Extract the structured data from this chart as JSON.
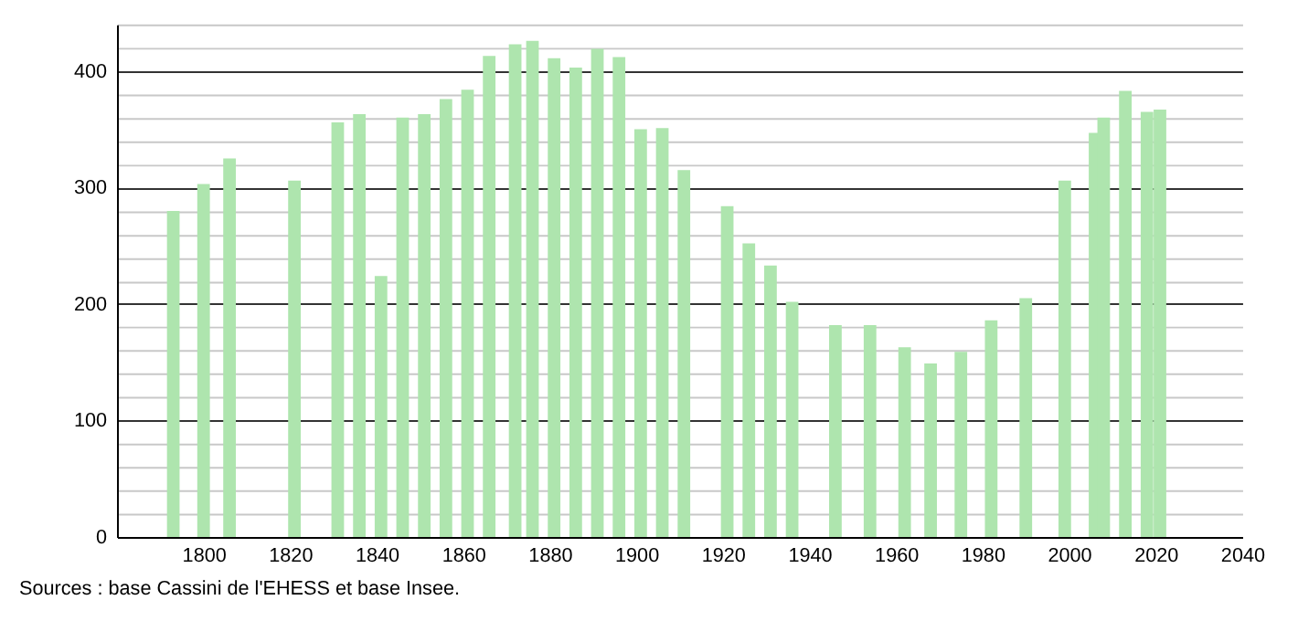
{
  "chart_data": {
    "type": "bar",
    "x": [
      1793,
      1800,
      1806,
      1821,
      1831,
      1836,
      1841,
      1846,
      1851,
      1856,
      1861,
      1866,
      1872,
      1876,
      1881,
      1886,
      1891,
      1896,
      1901,
      1906,
      1911,
      1921,
      1926,
      1931,
      1936,
      1946,
      1954,
      1962,
      1968,
      1975,
      1982,
      1990,
      1999,
      2006,
      2008,
      2013,
      2018,
      2021
    ],
    "values": [
      280,
      303,
      325,
      306,
      356,
      363,
      224,
      360,
      363,
      376,
      384,
      413,
      423,
      426,
      411,
      403,
      419,
      412,
      350,
      351,
      315,
      284,
      252,
      233,
      202,
      182,
      182,
      163,
      149,
      159,
      186,
      205,
      306,
      347,
      360,
      383,
      365,
      367
    ],
    "color": "#aee5ae",
    "xlim": [
      1780,
      2040
    ],
    "xticks": [
      1800,
      1820,
      1840,
      1860,
      1880,
      1900,
      1920,
      1940,
      1960,
      1980,
      2000,
      2020,
      2040
    ],
    "ylim": [
      0,
      440
    ],
    "yticks": [
      0,
      {
        "value": 20,
        "label": null
      },
      {
        "value": 40,
        "label": null
      },
      {
        "value": 60,
        "label": null
      },
      {
        "value": 80,
        "label": null
      },
      100,
      {
        "value": 120,
        "label": null
      },
      {
        "value": 140,
        "label": null
      },
      {
        "value": 160,
        "label": null
      },
      {
        "value": 180,
        "label": null
      },
      200,
      {
        "value": 220,
        "label": null
      },
      {
        "value": 240,
        "label": null
      },
      {
        "value": 260,
        "label": null
      },
      {
        "value": 280,
        "label": null
      },
      300,
      {
        "value": 320,
        "label": null
      },
      {
        "value": 340,
        "label": null
      },
      {
        "value": 360,
        "label": null
      },
      {
        "value": 380,
        "label": null
      },
      400,
      {
        "value": 420,
        "label": null
      },
      {
        "value": 440,
        "label": null
      }
    ],
    "grid": "y",
    "annotations": [
      "Sources : base Cassini de l'EHESS et base Insee."
    ]
  }
}
